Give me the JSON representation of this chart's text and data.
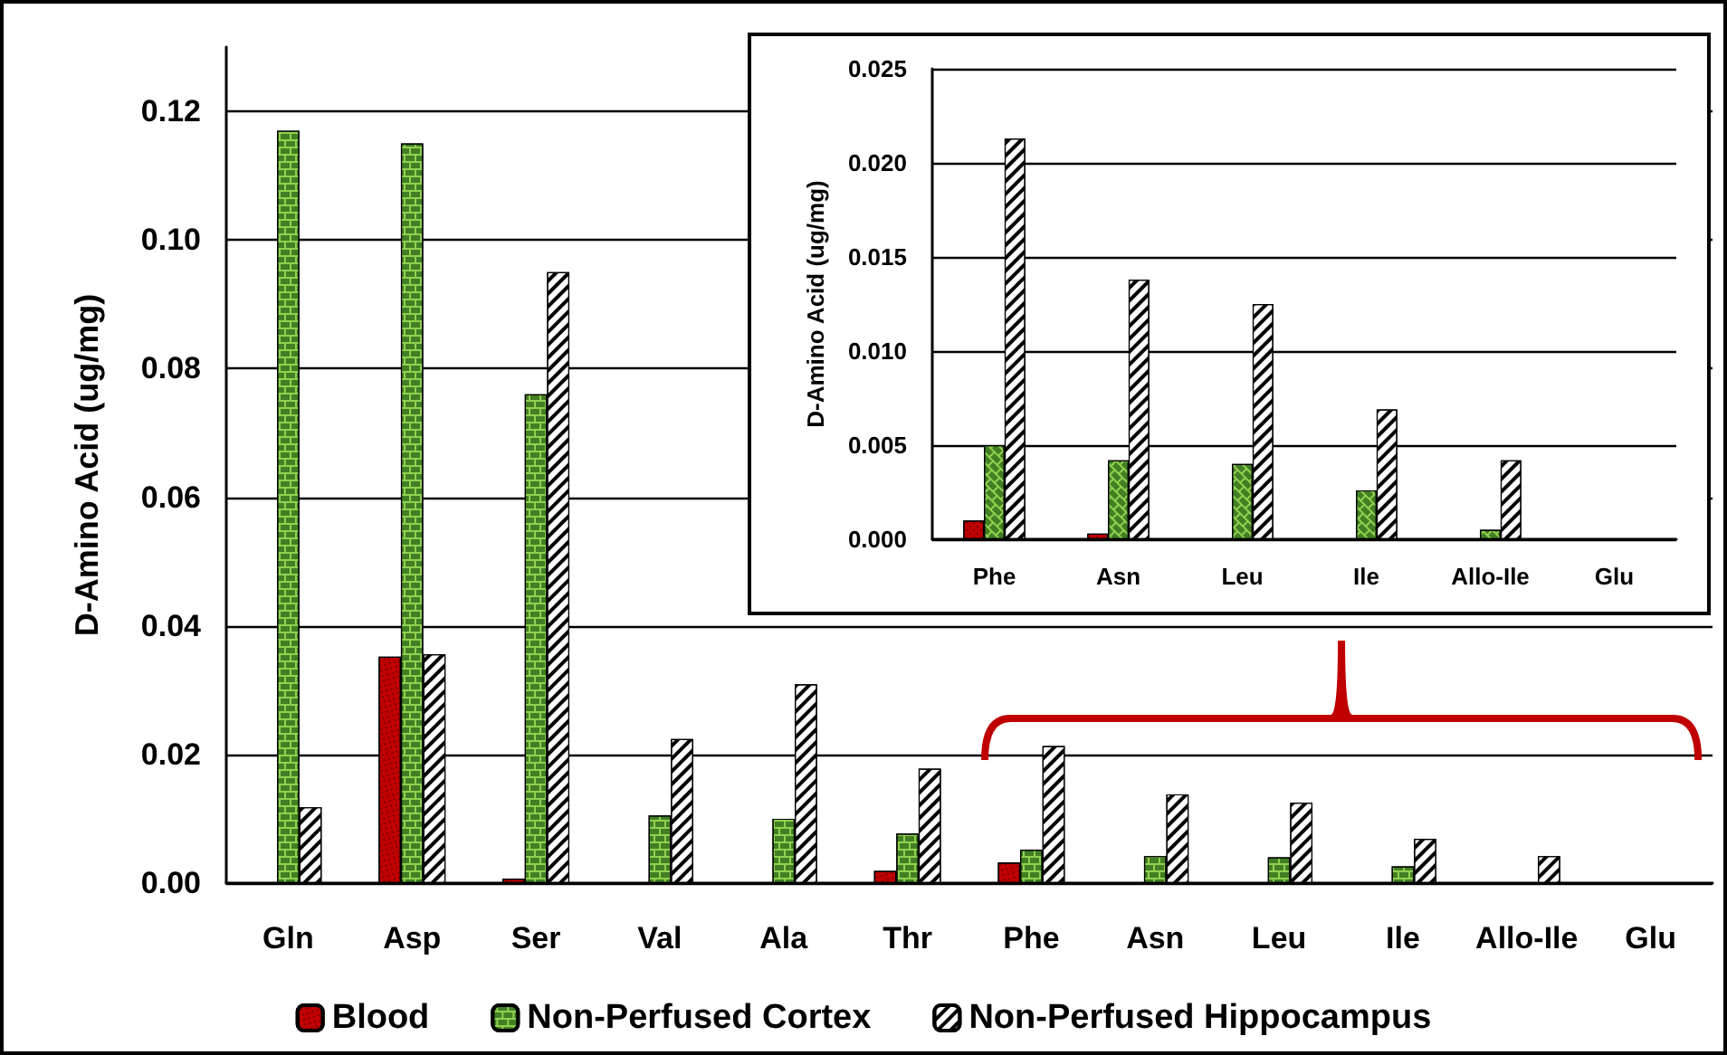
{
  "chart_data": [
    {
      "type": "bar",
      "ylabel": "D-Amino Acid (ug/mg)",
      "categories": [
        "Gln",
        "Asp",
        "Ser",
        "Val",
        "Ala",
        "Thr",
        "Phe",
        "Asn",
        "Leu",
        "Ile",
        "Allo-Ile",
        "Glu"
      ],
      "series": [
        {
          "name": "Blood",
          "color": "#c00000",
          "values": [
            null,
            0.0352,
            0.0007,
            null,
            null,
            0.0019,
            0.0032,
            null,
            null,
            null,
            null,
            null
          ]
        },
        {
          "name": "Non-Perfused Cortex",
          "color": "#92d050",
          "values": [
            0.117,
            0.115,
            0.076,
            0.0105,
            0.01,
            0.0077,
            0.0052,
            0.0042,
            0.004,
            0.0026,
            null,
            null
          ]
        },
        {
          "name": "Non-Perfused Hippocampus",
          "color": "#ffffff",
          "values": [
            0.0118,
            0.0356,
            0.095,
            0.0224,
            0.0309,
            0.0178,
            0.0213,
            0.0138,
            0.0125,
            0.0069,
            0.0042,
            null
          ]
        }
      ],
      "ylim": [
        0,
        0.13
      ],
      "yticks": [
        {
          "value": 0,
          "label": "0.00"
        },
        {
          "value": 0.02,
          "label": "0.02"
        },
        {
          "value": 0.04,
          "label": "0.04"
        },
        {
          "value": 0.06,
          "label": "0.06"
        },
        {
          "value": 0.08,
          "label": "0.08"
        },
        {
          "value": 0.1,
          "label": "0.10"
        },
        {
          "value": 0.12,
          "label": "0.12"
        }
      ],
      "grid": "y",
      "legend": "bottom"
    },
    {
      "type": "bar",
      "ylabel": "D-Amino Acid (ug/mg)",
      "categories": [
        "Phe",
        "Asn",
        "Leu",
        "Ile",
        "Allo-Ile",
        "Glu"
      ],
      "series": [
        {
          "color": "#c00000",
          "values": [
            0.001,
            0.0003,
            null,
            null,
            null,
            null
          ]
        },
        {
          "color": "#92d050",
          "values": [
            0.005,
            0.0042,
            0.004,
            0.0026,
            0.0005,
            null
          ]
        },
        {
          "color": "#ffffff",
          "values": [
            0.0213,
            0.0138,
            0.0125,
            0.0069,
            0.0042,
            null
          ]
        }
      ],
      "ylim": [
        0,
        0.025
      ],
      "yticks": [
        {
          "value": 0,
          "label": "0.000"
        },
        {
          "value": 0.005,
          "label": "0.005"
        },
        {
          "value": 0.01,
          "label": "0.010"
        },
        {
          "value": 0.015,
          "label": "0.015"
        },
        {
          "value": 0.02,
          "label": "0.020"
        },
        {
          "value": 0.025,
          "label": "0.025"
        }
      ],
      "grid": "y"
    }
  ]
}
